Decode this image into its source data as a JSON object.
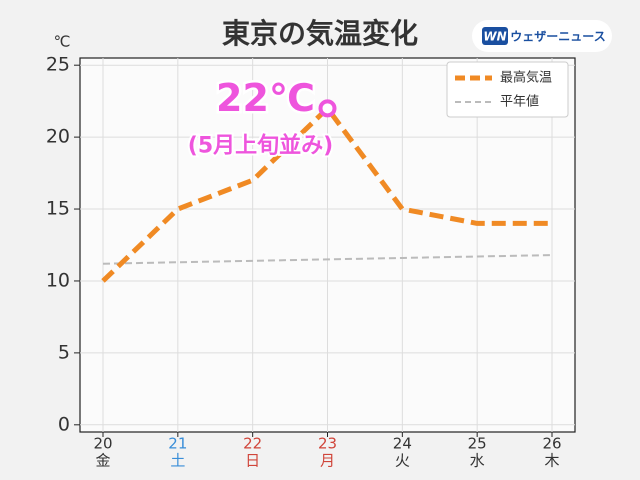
{
  "chart_data": {
    "type": "line",
    "title": "東京の気温変化",
    "logo": {
      "mark": "WN",
      "text": "ウェザーニュース"
    },
    "y_unit": "℃",
    "categories": [
      "20",
      "21",
      "22",
      "23",
      "24",
      "25",
      "26"
    ],
    "weekdays": [
      "金",
      "土",
      "日",
      "月",
      "火",
      "水",
      "木"
    ],
    "category_colors": [
      "#333333",
      "#3a8ed8",
      "#d0453a",
      "#d0453a",
      "#333333",
      "#333333",
      "#333333"
    ],
    "series": [
      {
        "name": "最高気温",
        "color": "#f08a24",
        "dash": "dash",
        "values": [
          10,
          15,
          17,
          22,
          15,
          14,
          14
        ]
      },
      {
        "name": "平年値",
        "color": "#bbbbbb",
        "dash": "dash",
        "values": [
          11.2,
          11.3,
          11.4,
          11.5,
          11.6,
          11.7,
          11.8
        ]
      }
    ],
    "ylim": [
      -0.5,
      25.5
    ],
    "yticks": [
      0,
      5,
      10,
      15,
      20,
      25
    ],
    "grid": true,
    "legend": "upper right",
    "annotations": [
      {
        "text": "22℃",
        "subtext": "(5月上旬並み)",
        "series": 0,
        "index": 3,
        "color": "#ee55dd"
      }
    ]
  }
}
